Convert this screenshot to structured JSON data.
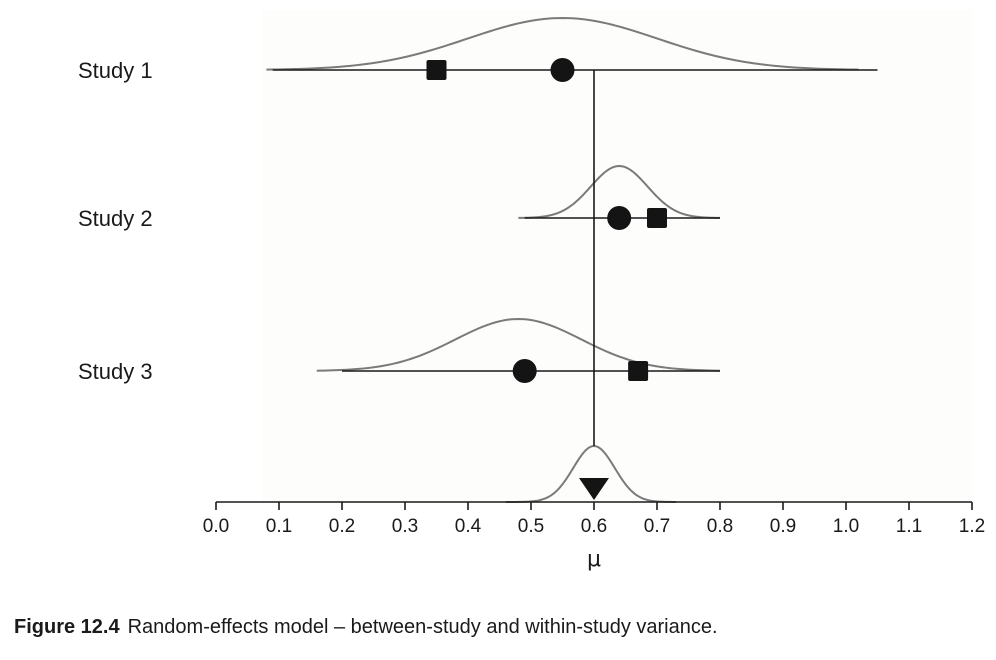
{
  "chart_data": {
    "type": "forest-plot",
    "x_label": "μ",
    "x_range": [
      0.0,
      1.2
    ],
    "x_ticks": [
      "0.0",
      "0.1",
      "0.2",
      "0.3",
      "0.4",
      "0.5",
      "0.6",
      "0.7",
      "0.8",
      "0.9",
      "1.0",
      "1.1",
      "1.2"
    ],
    "combined_mean": 0.6,
    "studies": [
      {
        "label": "Study 1",
        "observed": 0.35,
        "true_effect": 0.55,
        "interval": [
          0.09,
          1.05
        ],
        "curve_mean": 0.55,
        "curve_sd": 0.15,
        "curve_range": [
          0.08,
          1.02
        ],
        "curve_peak": 0.5
      },
      {
        "label": "Study 2",
        "observed": 0.7,
        "true_effect": 0.64,
        "interval": [
          0.49,
          0.8
        ],
        "curve_mean": 0.64,
        "curve_sd": 0.045,
        "curve_range": [
          0.48,
          0.8
        ],
        "curve_peak": 0.48
      },
      {
        "label": "Study 3",
        "observed": 0.67,
        "true_effect": 0.49,
        "interval": [
          0.2,
          0.8
        ],
        "curve_mean": 0.48,
        "curve_sd": 0.1,
        "curve_range": [
          0.16,
          0.8
        ],
        "curve_peak": 0.5
      }
    ],
    "summary_curve": {
      "mean": 0.6,
      "sd": 0.033,
      "range": [
        0.46,
        0.73
      ],
      "peak": 0.5
    },
    "colors": {
      "curve": "#7a7a7a",
      "line": "#1a1a1a",
      "marker": "#141414",
      "plot_background": "#fdfdfb"
    }
  },
  "caption": {
    "number": "Figure 12.4",
    "text": "Random-effects model – between-study and within-study variance."
  }
}
